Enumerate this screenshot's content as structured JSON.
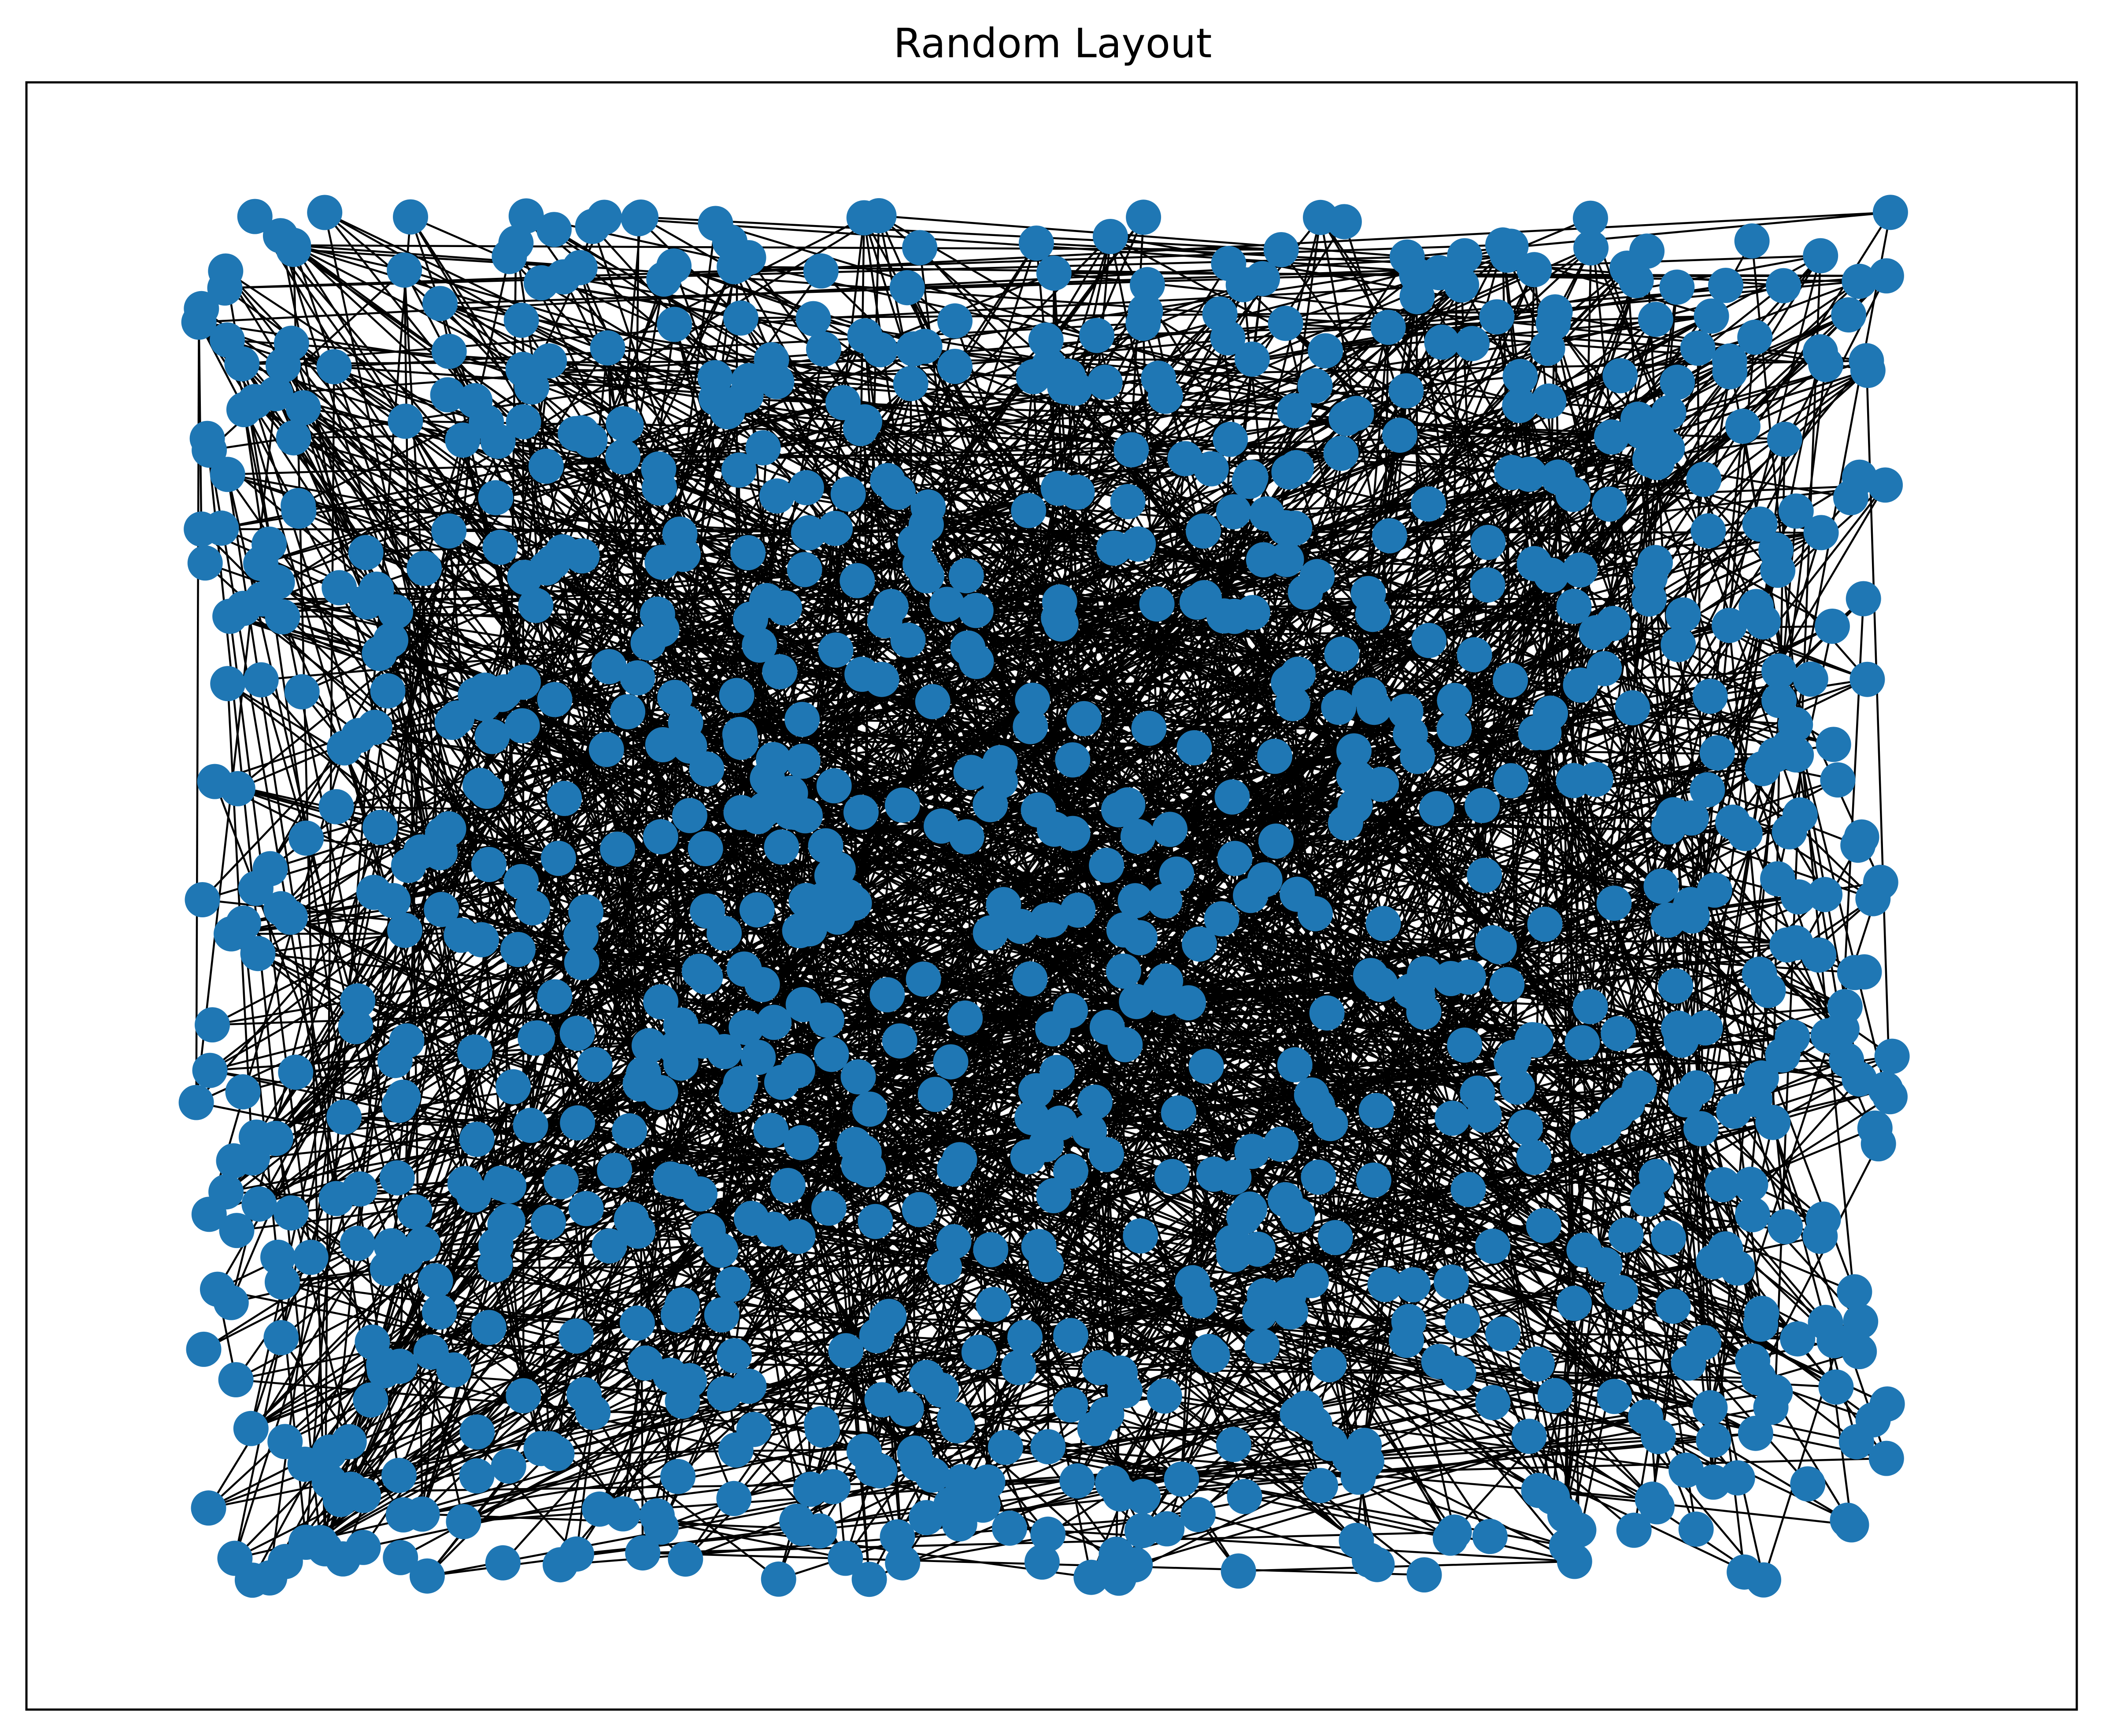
{
  "title": "Random Layout",
  "colors": {
    "node": "#1f77b4",
    "edge": "#000000",
    "frame": "#000000",
    "background": "#ffffff"
  },
  "graph": {
    "layout": "random",
    "approx_node_count": 1000,
    "approx_edge_count": 1800,
    "x_range": [
      0,
      1
    ],
    "y_range": [
      0,
      1
    ]
  }
}
